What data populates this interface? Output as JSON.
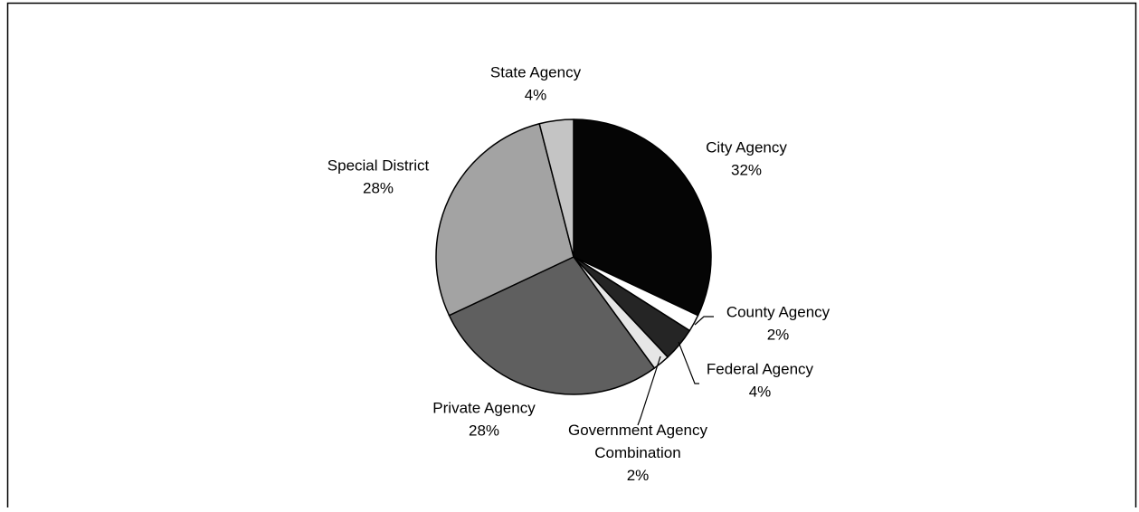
{
  "chart_data": {
    "type": "pie",
    "title": "",
    "slices": [
      {
        "label": "City Agency",
        "value_label": "32%",
        "value": 32,
        "color": "#050505"
      },
      {
        "label": "County Agency",
        "value_label": "2%",
        "value": 2,
        "color": "#ffffff"
      },
      {
        "label": "Federal Agency",
        "value_label": "4%",
        "value": 4,
        "color": "#252525"
      },
      {
        "label": "Government Agency Combination",
        "label_lines": [
          "Government Agency",
          "Combination"
        ],
        "value_label": "2%",
        "value": 2,
        "color": "#e6e6e6"
      },
      {
        "label": "Private Agency",
        "value_label": "28%",
        "value": 28,
        "color": "#5f5f5f"
      },
      {
        "label": "Special District",
        "value_label": "28%",
        "value": 28,
        "color": "#a3a3a3"
      },
      {
        "label": "State Agency",
        "value_label": "4%",
        "value": 4,
        "color": "#c4c4c4"
      }
    ],
    "start": "12 o'clock",
    "direction": "clockwise",
    "legend": "none",
    "data_labels": "outside, category name and percentage"
  }
}
